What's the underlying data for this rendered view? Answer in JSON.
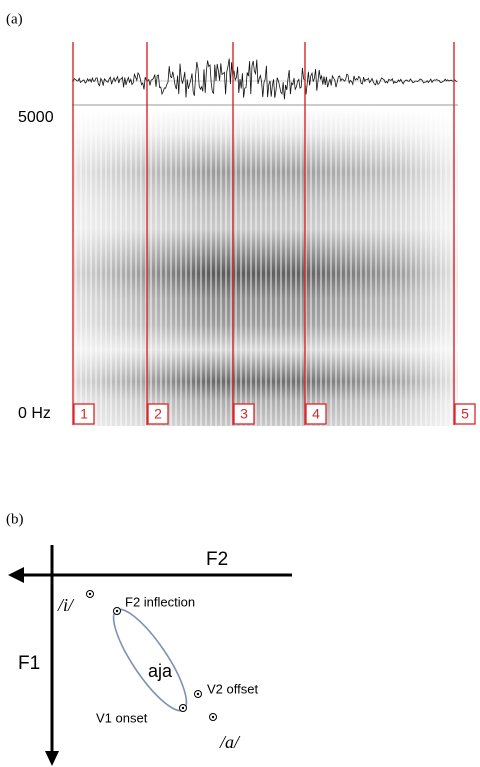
{
  "panel_a": {
    "label": "(a)",
    "freq_top": "5000",
    "freq_bottom": "0 Hz",
    "boundaries": [
      "1",
      "2",
      "3",
      "4",
      "5"
    ]
  },
  "panel_b": {
    "label": "(b)",
    "x_axis": "F2",
    "y_axis": "F1",
    "vowel_i": "/i/",
    "vowel_a": "/a/",
    "trajectory": "aja",
    "points": [
      "F2 inflection",
      "V2 offset",
      "V1 onset"
    ]
  }
}
